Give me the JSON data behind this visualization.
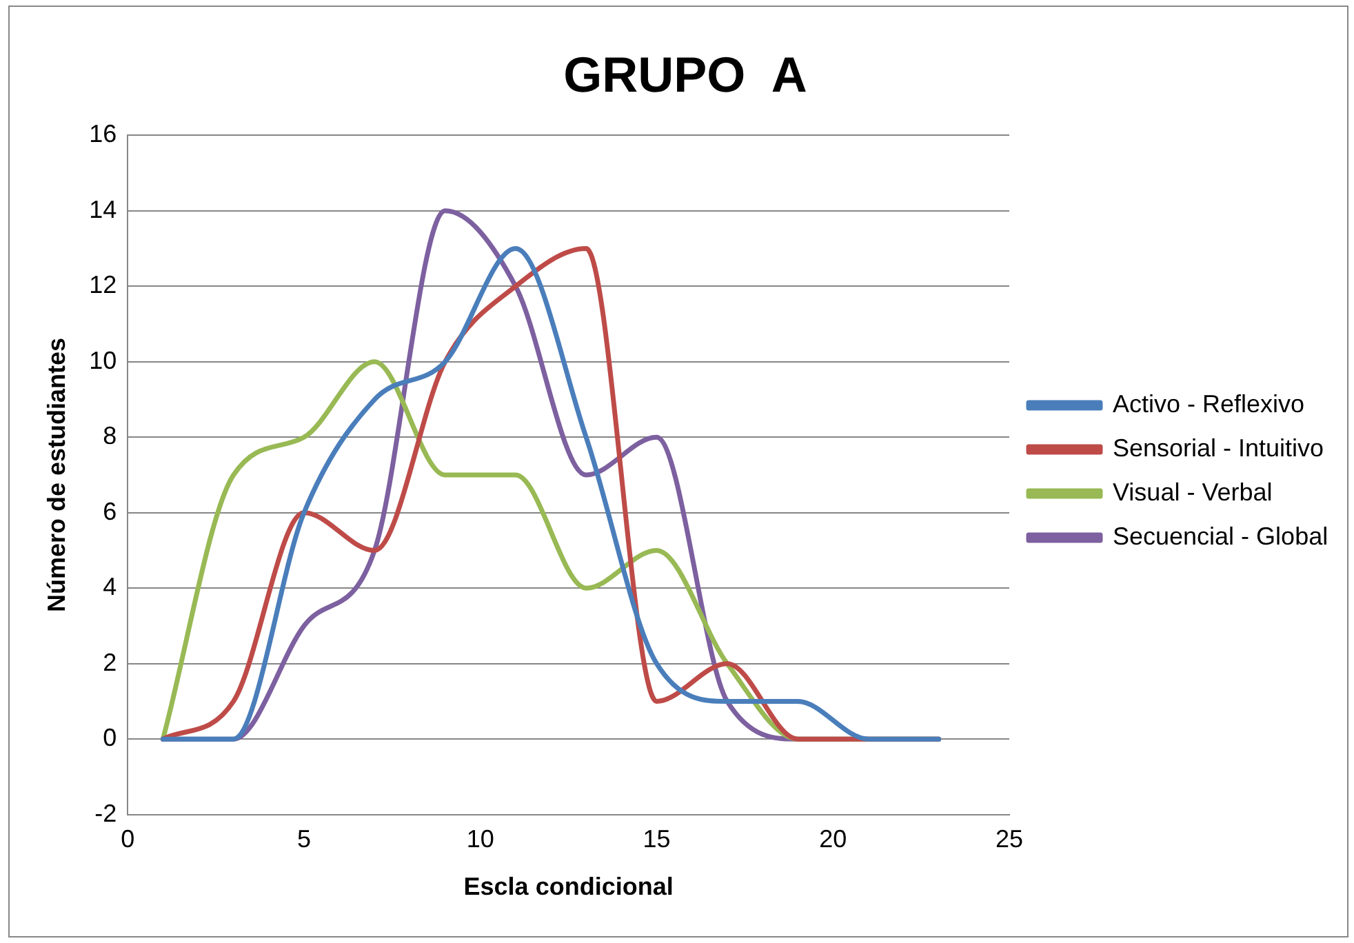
{
  "chart_data": {
    "type": "line",
    "title": "GRUPO  A",
    "xlabel": "Escla condicional",
    "ylabel": "Número de estudiantes",
    "x": [
      1,
      3,
      5,
      7,
      9,
      11,
      13,
      15,
      17,
      19,
      21,
      23
    ],
    "series": [
      {
        "name": "Activo - Reflexivo",
        "color": "#4a7ebb",
        "values": [
          0,
          0,
          6,
          9,
          10,
          13,
          8,
          2,
          1,
          1,
          0,
          0
        ]
      },
      {
        "name": "Sensorial - Intuitivo",
        "color": "#be4b48",
        "values": [
          0,
          1,
          6,
          5,
          10,
          12,
          13,
          1,
          2,
          0,
          0,
          0
        ]
      },
      {
        "name": "Visual - Verbal",
        "color": "#98b954",
        "values": [
          0,
          7,
          8,
          10,
          7,
          7,
          4,
          5,
          2,
          0,
          0,
          0
        ]
      },
      {
        "name": "Secuencial - Global",
        "color": "#7d60a0",
        "values": [
          0,
          0,
          3,
          5,
          14,
          12,
          7,
          8,
          1,
          0,
          0,
          0
        ]
      }
    ],
    "xlim": [
      0,
      25
    ],
    "xticks": [
      0,
      5,
      10,
      15,
      20,
      25
    ],
    "ylim": [
      -2,
      16
    ],
    "yticks": [
      -2,
      0,
      2,
      4,
      6,
      8,
      10,
      12,
      14,
      16
    ],
    "grid": "y",
    "legend": "right",
    "marker": "none",
    "line_style": "solid"
  }
}
